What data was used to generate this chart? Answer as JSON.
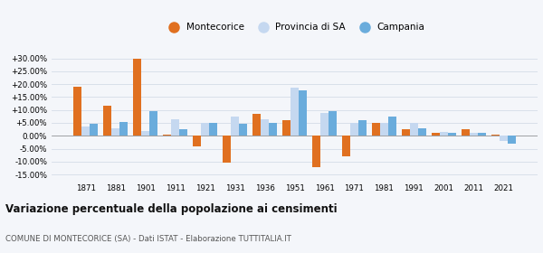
{
  "years": [
    1871,
    1881,
    1901,
    1911,
    1921,
    1931,
    1936,
    1951,
    1961,
    1971,
    1981,
    1991,
    2001,
    2011,
    2021
  ],
  "montecorice": [
    19.0,
    11.5,
    30.0,
    0.5,
    -4.0,
    -10.5,
    8.5,
    6.0,
    -12.0,
    -8.0,
    5.0,
    2.5,
    1.0,
    2.5,
    0.5
  ],
  "provincia_sa": [
    3.5,
    3.0,
    2.0,
    6.5,
    5.0,
    7.5,
    6.5,
    18.5,
    9.0,
    5.0,
    5.0,
    5.0,
    1.5,
    1.0,
    -2.0
  ],
  "campania": [
    4.5,
    5.5,
    9.5,
    2.5,
    5.0,
    4.5,
    5.0,
    17.5,
    9.5,
    6.0,
    7.5,
    3.0,
    1.0,
    1.0,
    -3.0
  ],
  "color_montecorice": "#e07020",
  "color_provincia": "#c5d8f0",
  "color_campania": "#6aacdc",
  "title": "Variazione percentuale della popolazione ai censimenti",
  "subtitle": "COMUNE DI MONTECORICE (SA) - Dati ISTAT - Elaborazione TUTTITALIA.IT",
  "ylim": [
    -17,
    33
  ],
  "yticks": [
    -15,
    -10,
    -5,
    0,
    5,
    10,
    15,
    20,
    25,
    30
  ],
  "grid_color": "#d4dce8",
  "background_color": "#f4f6fa"
}
